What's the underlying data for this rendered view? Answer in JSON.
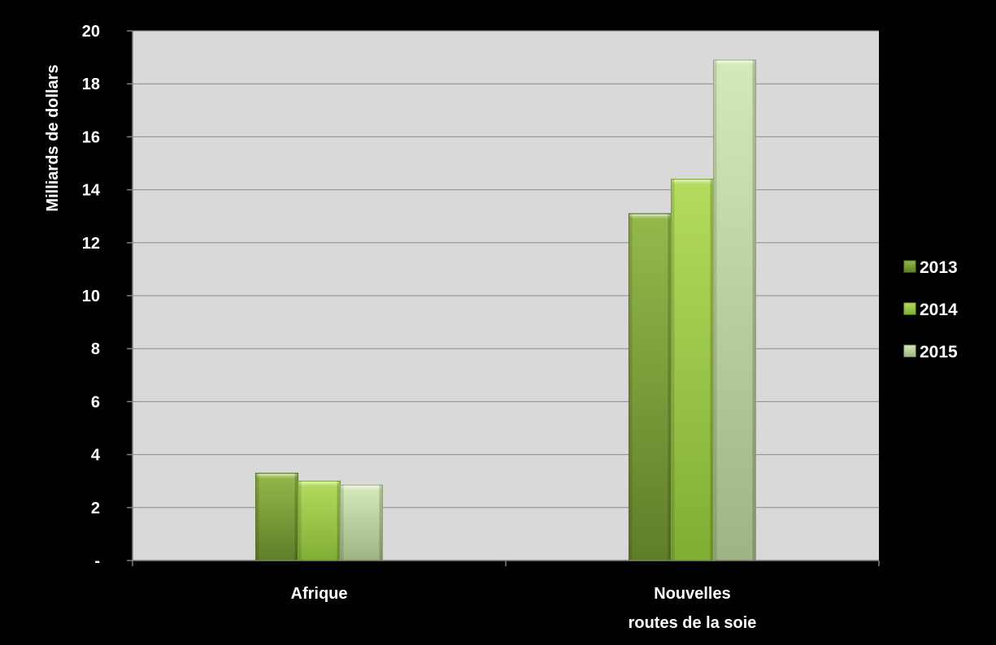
{
  "chart_data": {
    "type": "bar",
    "title": "",
    "ylabel": "Milliards de dollars",
    "xlabel": "",
    "ylim": [
      0,
      20
    ],
    "y_ticks": [
      {
        "value": 0,
        "label": "-"
      },
      {
        "value": 2,
        "label": "2"
      },
      {
        "value": 4,
        "label": "4"
      },
      {
        "value": 6,
        "label": "6"
      },
      {
        "value": 8,
        "label": "8"
      },
      {
        "value": 10,
        "label": "10"
      },
      {
        "value": 12,
        "label": "12"
      },
      {
        "value": 14,
        "label": "14"
      },
      {
        "value": 16,
        "label": "16"
      },
      {
        "value": 18,
        "label": "18"
      },
      {
        "value": 20,
        "label": "20"
      }
    ],
    "categories": [
      {
        "lines": [
          "Afrique"
        ]
      },
      {
        "lines": [
          "Nouvelles",
          "routes de la soie"
        ]
      }
    ],
    "series": [
      {
        "name": "2013",
        "values": [
          3.3,
          13.1
        ],
        "color": "#7fa33a",
        "light": "#94b94a",
        "dark": "#5f7e29"
      },
      {
        "name": "2014",
        "values": [
          3.0,
          14.4
        ],
        "color": "#9ccb45",
        "light": "#b4dc5c",
        "dark": "#7fae35"
      },
      {
        "name": "2015",
        "values": [
          2.85,
          18.9
        ],
        "color": "#c3dca2",
        "light": "#d6e9b8",
        "dark": "#9fb383"
      }
    ],
    "grid": true,
    "legend": "right",
    "plot_background": "#d9d9d9"
  }
}
